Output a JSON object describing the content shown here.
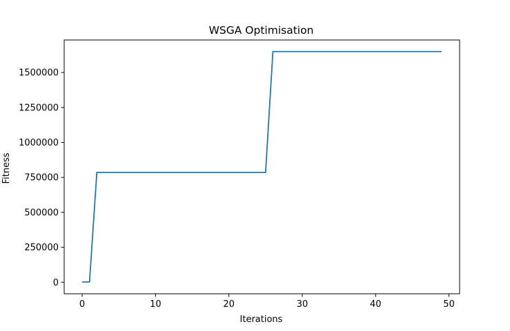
{
  "chart_data": {
    "type": "line",
    "title": "WSGA Optimisation",
    "xlabel": "Iterations",
    "ylabel": "Fitness",
    "xlim": [
      -2.45,
      51.45
    ],
    "ylim": [
      -82500,
      1732500
    ],
    "xticks": [
      0,
      10,
      20,
      30,
      40,
      50
    ],
    "yticks": [
      0,
      250000,
      500000,
      750000,
      1000000,
      1250000,
      1500000
    ],
    "grid": false,
    "legend": "none",
    "line_color": "#1f77b4",
    "series": [
      {
        "x": [
          0,
          1,
          2,
          3,
          4,
          5,
          6,
          7,
          8,
          9,
          10,
          11,
          12,
          13,
          14,
          15,
          16,
          17,
          18,
          19,
          20,
          21,
          22,
          23,
          24,
          25,
          26,
          27,
          28,
          29,
          30,
          31,
          32,
          33,
          34,
          35,
          36,
          37,
          38,
          39,
          40,
          41,
          42,
          43,
          44,
          45,
          46,
          47,
          48,
          49
        ],
        "values": [
          2000,
          2000,
          785000,
          785000,
          785000,
          785000,
          785000,
          785000,
          785000,
          785000,
          785000,
          785000,
          785000,
          785000,
          785000,
          785000,
          785000,
          785000,
          785000,
          785000,
          785000,
          785000,
          785000,
          785000,
          785000,
          785000,
          1650000,
          1650000,
          1650000,
          1650000,
          1650000,
          1650000,
          1650000,
          1650000,
          1650000,
          1650000,
          1650000,
          1650000,
          1650000,
          1650000,
          1650000,
          1650000,
          1650000,
          1650000,
          1650000,
          1650000,
          1650000,
          1650000,
          1650000,
          1650000
        ]
      }
    ]
  }
}
